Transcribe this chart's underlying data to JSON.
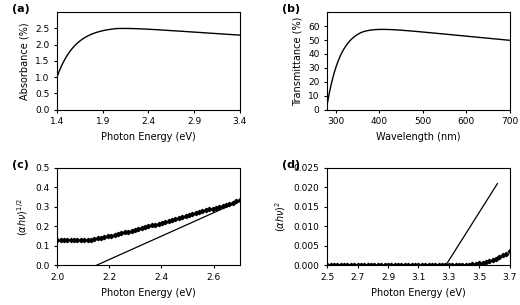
{
  "panel_a": {
    "label": "(a)",
    "xlabel": "Photon Energy (eV)",
    "ylabel": "Absorbance (%)",
    "xlim": [
      1.4,
      3.4
    ],
    "ylim": [
      0,
      3
    ],
    "yticks": [
      0,
      0.5,
      1.0,
      1.5,
      2.0,
      2.5
    ],
    "xticks": [
      1.4,
      1.9,
      2.4,
      2.9,
      3.4
    ]
  },
  "panel_b": {
    "label": "(b)",
    "xlabel": "Wavelength (nm)",
    "ylabel": "Transmittance (%)",
    "xlim": [
      280,
      700
    ],
    "ylim": [
      0,
      70
    ],
    "yticks": [
      0,
      10,
      20,
      30,
      40,
      50,
      60
    ],
    "xticks": [
      300,
      400,
      500,
      600,
      700
    ]
  },
  "panel_c": {
    "label": "(c)",
    "xlabel": "Photon Energy (eV)",
    "ylabel": "(ahv)^1/2",
    "xlim": [
      2.0,
      2.7
    ],
    "ylim": [
      0,
      0.5
    ],
    "yticks": [
      0,
      0.1,
      0.2,
      0.3,
      0.4,
      0.5
    ],
    "xticks": [
      2.0,
      2.2,
      2.4,
      2.6
    ],
    "line_x": [
      2.15,
      2.7
    ],
    "line_y": [
      0.0,
      0.33
    ]
  },
  "panel_d": {
    "label": "(d)",
    "xlabel": "Photon Energy (eV)",
    "ylabel": "(ahv)^2",
    "xlim": [
      2.5,
      3.7
    ],
    "ylim": [
      0,
      0.025
    ],
    "yticks": [
      0,
      0.005,
      0.01,
      0.015,
      0.02,
      0.025
    ],
    "xticks": [
      2.5,
      2.7,
      2.9,
      3.1,
      3.3,
      3.5,
      3.7
    ],
    "line_x": [
      3.28,
      3.62
    ],
    "line_y": [
      0.0,
      0.021
    ]
  },
  "line_color": "#000000",
  "marker_color": "#000000",
  "bg_color": "#ffffff",
  "label_fontsize": 8,
  "tick_fontsize": 6.5,
  "axis_label_fontsize": 7.0
}
